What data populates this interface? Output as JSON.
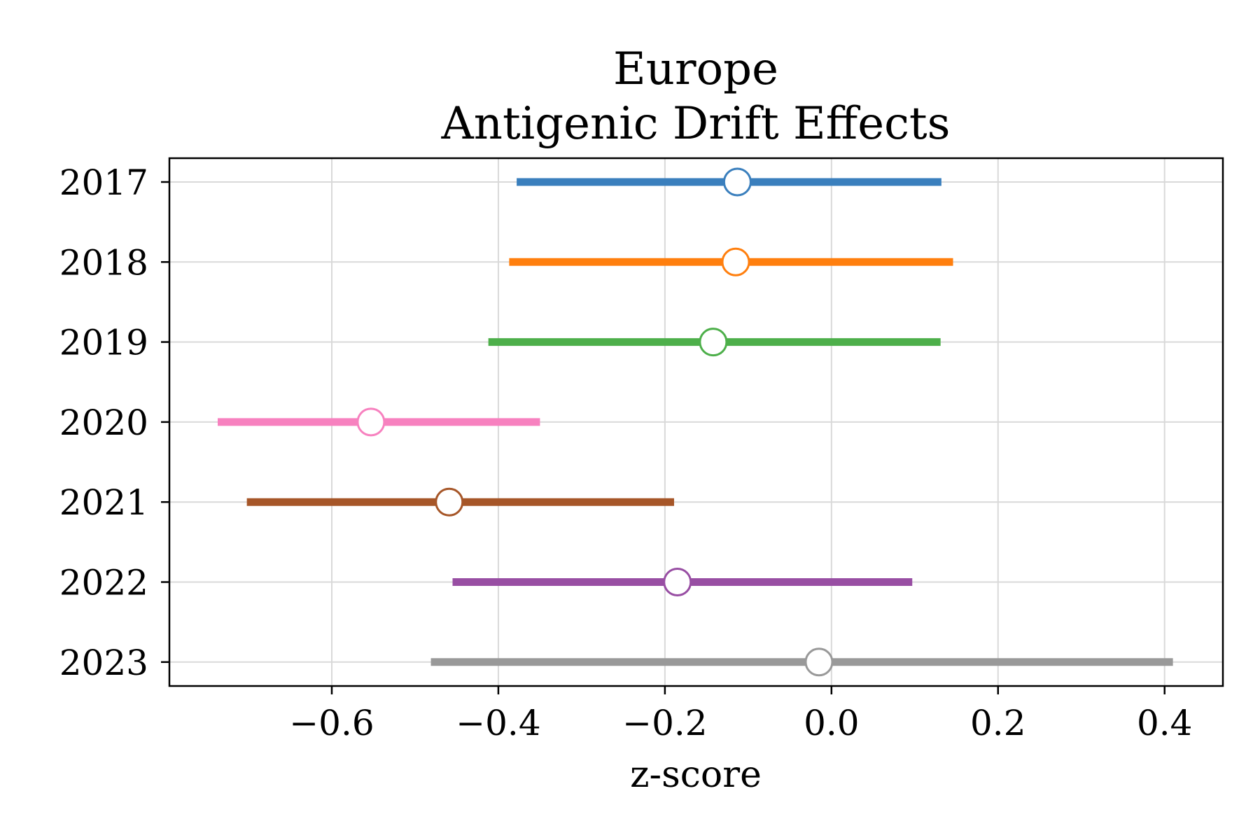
{
  "chart_data": {
    "type": "forest",
    "title": [
      "Europe",
      "Antigenic Drift Effects"
    ],
    "xlabel": "z-score",
    "ylabel": "",
    "xlim": [
      -0.795,
      0.47
    ],
    "xticks": [
      -0.6,
      -0.4,
      -0.2,
      0.0,
      0.2,
      0.4
    ],
    "xtick_labels": [
      "−0.6",
      "−0.4",
      "−0.2",
      "0.0",
      "0.2",
      "0.4"
    ],
    "grid": true,
    "categories": [
      "2017",
      "2018",
      "2019",
      "2020",
      "2021",
      "2022",
      "2023"
    ],
    "series": [
      {
        "category": "2017",
        "estimate": -0.113,
        "low": -0.378,
        "high": 0.132,
        "color": "#3a7fbd"
      },
      {
        "category": "2018",
        "estimate": -0.115,
        "low": -0.387,
        "high": 0.146,
        "color": "#ff7f0e"
      },
      {
        "category": "2019",
        "estimate": -0.142,
        "low": -0.412,
        "high": 0.131,
        "color": "#4daf4a"
      },
      {
        "category": "2020",
        "estimate": -0.553,
        "low": -0.737,
        "high": -0.35,
        "color": "#f781bf"
      },
      {
        "category": "2021",
        "estimate": -0.459,
        "low": -0.702,
        "high": -0.189,
        "color": "#a65628"
      },
      {
        "category": "2022",
        "estimate": -0.185,
        "low": -0.455,
        "high": 0.097,
        "color": "#984ea3"
      },
      {
        "category": "2023",
        "estimate": -0.015,
        "low": -0.481,
        "high": 0.41,
        "color": "#999999"
      }
    ]
  }
}
